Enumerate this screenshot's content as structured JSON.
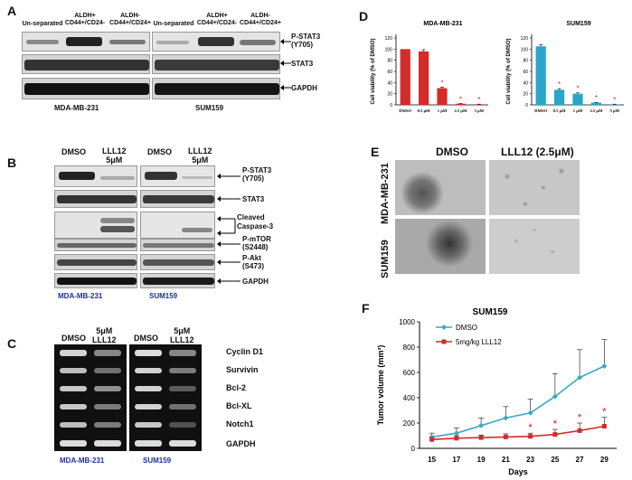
{
  "panelA": {
    "label": "A",
    "lanes_left": [
      "Un-separated",
      "ALDH+\nCD44+/CD24-",
      "ALDH-\nCD44+/CD24+"
    ],
    "lanes_right": [
      "Un-separated",
      "ALDH+\nCD44+/CD24-",
      "ALDH-\nCD44+/CD24+"
    ],
    "proteins": [
      "P-STAT3\n(Y705)",
      "STAT3",
      "GAPDH"
    ],
    "cell_lines": [
      "MDA-MB-231",
      "SUM159"
    ]
  },
  "panelB": {
    "label": "B",
    "lanes_left": [
      "DMSO",
      "LLL12\n5μM"
    ],
    "lanes_right": [
      "DMSO",
      "LLL12\n5μM"
    ],
    "proteins": [
      "P-STAT3\n(Y705)",
      "STAT3",
      "Cleaved\nCaspase-3",
      "P-mTOR\n(S2448)",
      "P-Akt\n(S473)",
      "GAPDH"
    ],
    "cell_lines": [
      "MDA-MB-231",
      "SUM159"
    ]
  },
  "panelC": {
    "label": "C",
    "lanes_left": [
      "DMSO",
      "5μM\nLLL12"
    ],
    "lanes_right": [
      "DMSO",
      "5μM\nLLL12"
    ],
    "genes": [
      "Cyclin D1",
      "Survivin",
      "Bcl-2",
      "Bcl-XL",
      "Notch1",
      "GAPDH"
    ],
    "cell_lines": [
      "MDA-MB-231",
      "SUM159"
    ]
  },
  "panelD": {
    "label": "D",
    "colors": {
      "mda": "#d42b2b",
      "sum": "#2aa6c9",
      "star": "#d42b2b"
    }
  },
  "panelE": {
    "label": "E",
    "columns": [
      "DMSO",
      "LLL12 (2.5μM)"
    ],
    "rows": [
      "MDA-MB-231",
      "SUM159"
    ]
  },
  "panelF": {
    "label": "F",
    "colors": {
      "dmso": "#3aa9c6",
      "lll12": "#d42b2b"
    }
  },
  "chart_data": [
    {
      "type": "bar",
      "title": "MDA-MB-231",
      "ylabel": "Cell viability (% of DMSO)",
      "categories": [
        "DMSO",
        "0.5 μM",
        "1 μM",
        "2.5 μM",
        "5 μM"
      ],
      "values": [
        100,
        96,
        30,
        2,
        1
      ],
      "errors": [
        0,
        3,
        2,
        0.5,
        0.3
      ],
      "significant": [
        false,
        false,
        true,
        true,
        true
      ],
      "ylim": [
        0,
        120
      ],
      "yticks": [
        0,
        20,
        40,
        60,
        80,
        100,
        120
      ]
    },
    {
      "type": "bar",
      "title": "SUM159",
      "ylabel": "Cell viability (% of DMSO)",
      "categories": [
        "DMSO",
        "0.5 μM",
        "1 μM",
        "2.5 μM",
        "5 μM"
      ],
      "values": [
        105,
        27,
        20,
        4,
        1
      ],
      "errors": [
        3,
        2,
        1.5,
        0.5,
        0.3
      ],
      "significant": [
        false,
        true,
        true,
        true,
        true
      ],
      "ylim": [
        0,
        120
      ],
      "yticks": [
        0,
        20,
        40,
        60,
        80,
        100,
        120
      ]
    },
    {
      "type": "line",
      "title": "SUM159",
      "xlabel": "Days",
      "ylabel": "Tumor volume (mm³)",
      "x": [
        15,
        17,
        19,
        21,
        23,
        25,
        27,
        29
      ],
      "series": [
        {
          "name": "DMSO",
          "values": [
            90,
            120,
            180,
            240,
            280,
            410,
            560,
            650
          ],
          "errors": [
            30,
            40,
            60,
            90,
            110,
            180,
            220,
            210
          ]
        },
        {
          "name": "5mg/kg LLL12",
          "values": [
            70,
            80,
            85,
            90,
            95,
            110,
            140,
            175
          ],
          "errors": [
            15,
            20,
            20,
            25,
            25,
            40,
            60,
            70
          ]
        }
      ],
      "significant_x": [
        23,
        25,
        27,
        29
      ],
      "ylim": [
        0,
        1000
      ],
      "yticks": [
        0,
        200,
        400,
        600,
        800,
        1000
      ],
      "legend": "top-left"
    }
  ]
}
